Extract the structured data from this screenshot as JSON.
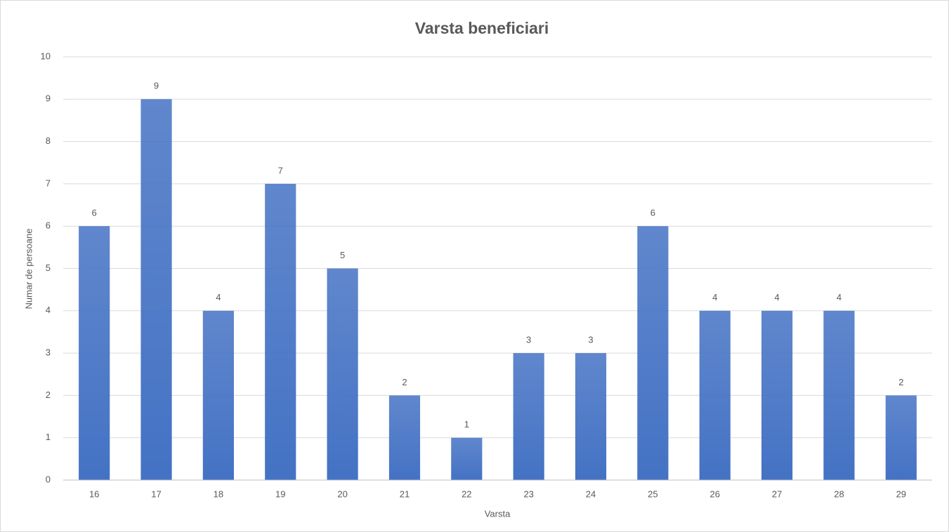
{
  "chart_data": {
    "type": "bar",
    "title": "Varsta beneficiari",
    "x_label": "Varsta",
    "y_label": "Numar de persoane",
    "categories": [
      "16",
      "17",
      "18",
      "19",
      "20",
      "21",
      "22",
      "23",
      "24",
      "25",
      "26",
      "27",
      "28",
      "29"
    ],
    "values": [
      6,
      9,
      4,
      7,
      5,
      2,
      1,
      3,
      3,
      6,
      4,
      4,
      4,
      2
    ],
    "color": "#4472c4",
    "ylim": [
      0,
      10
    ],
    "yticks": [
      0,
      1,
      2,
      3,
      4,
      5,
      6,
      7,
      8,
      9,
      10
    ],
    "grid": true
  }
}
